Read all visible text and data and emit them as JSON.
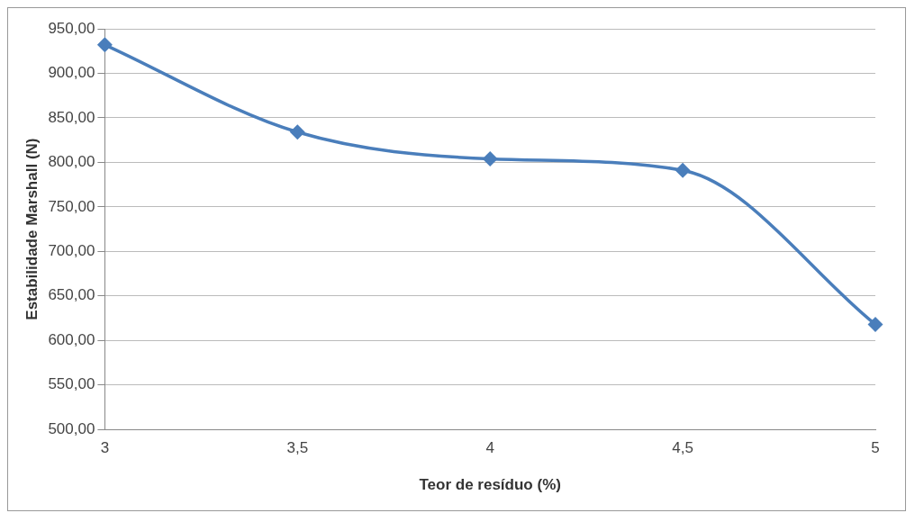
{
  "chart_data": {
    "type": "line",
    "xlabel": "Teor de resíduo (%)",
    "ylabel": "Estabilidade Marshall (N)",
    "x": [
      3,
      3.5,
      4,
      4.5,
      5
    ],
    "series": [
      {
        "color": "#4a7ebb",
        "values": [
          932,
          834,
          804,
          791,
          618
        ]
      }
    ],
    "xlim": [
      3,
      5
    ],
    "xticks": [
      3,
      {
        "value": 3.5,
        "label": "3,5"
      },
      4,
      {
        "value": 4.5,
        "label": "4,5"
      },
      5
    ],
    "ylim": [
      500,
      950
    ],
    "yticks": [
      {
        "value": 500,
        "label": "500,00"
      },
      {
        "value": 550,
        "label": "550,00"
      },
      {
        "value": 600,
        "label": "600,00"
      },
      {
        "value": 650,
        "label": "650,00"
      },
      {
        "value": 700,
        "label": "700,00"
      },
      {
        "value": 750,
        "label": "750,00"
      },
      {
        "value": 800,
        "label": "800,00"
      },
      {
        "value": 850,
        "label": "850,00"
      },
      {
        "value": 900,
        "label": "900,00"
      },
      {
        "value": 950,
        "label": "950,00"
      }
    ],
    "grid": "y",
    "legend": false,
    "marker": "diamond",
    "line_style": "solid"
  }
}
